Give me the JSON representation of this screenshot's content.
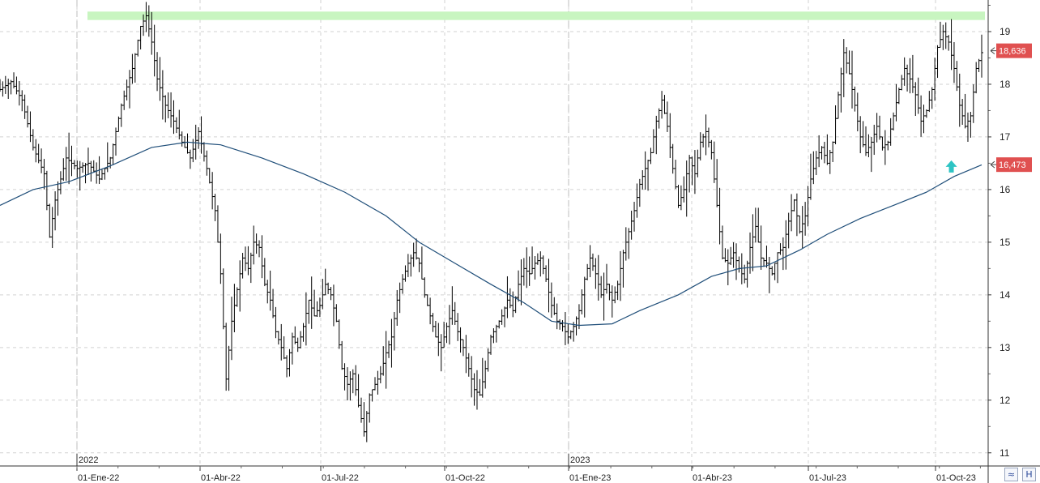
{
  "chart_data": {
    "type": "ohlc",
    "y_ticks": [
      "19",
      "18",
      "17",
      "16",
      "15",
      "14",
      "13",
      "12",
      "11"
    ],
    "ylim": [
      10.75,
      19.6
    ],
    "x_ticks": [
      "01-Ene-22",
      "01-Abr-22",
      "01-Jul-22",
      "01-Oct-22",
      "01-Ene-23",
      "01-Abr-23",
      "01-Jul-23",
      "01-Oct-23"
    ],
    "year_labels": [
      "2022",
      "2023"
    ],
    "price_tag": {
      "value": 18.636,
      "label": "18,636",
      "color": "#e05050"
    },
    "ma_tag": {
      "value": 16.473,
      "label": "16,473",
      "color": "#e05050"
    },
    "resistance_band": {
      "low": 19.22,
      "high": 19.38,
      "color": "#c8f5c0"
    },
    "price_path": [
      [
        0,
        17.9
      ],
      [
        4,
        18.05
      ],
      [
        8,
        17.7
      ],
      [
        12,
        16.8
      ],
      [
        16,
        16.3
      ],
      [
        18,
        15.1
      ],
      [
        20,
        15.8
      ],
      [
        24,
        16.6
      ],
      [
        28,
        16.4
      ],
      [
        32,
        16.5
      ],
      [
        36,
        16.2
      ],
      [
        40,
        16.6
      ],
      [
        44,
        17.6
      ],
      [
        48,
        18.3
      ],
      [
        51,
        19.1
      ],
      [
        53,
        19.3
      ],
      [
        55,
        18.8
      ],
      [
        57,
        18.1
      ],
      [
        60,
        17.6
      ],
      [
        63,
        17.3
      ],
      [
        66,
        16.9
      ],
      [
        69,
        16.6
      ],
      [
        72,
        17.1
      ],
      [
        75,
        16.4
      ],
      [
        78,
        15.6
      ],
      [
        80,
        14.4
      ],
      [
        82,
        12.4
      ],
      [
        84,
        13.5
      ],
      [
        86,
        14.1
      ],
      [
        88,
        14.7
      ],
      [
        90,
        14.5
      ],
      [
        92,
        15.0
      ],
      [
        94,
        14.9
      ],
      [
        96,
        14.2
      ],
      [
        98,
        13.9
      ],
      [
        100,
        13.3
      ],
      [
        102,
        13.0
      ],
      [
        104,
        12.6
      ],
      [
        106,
        13.2
      ],
      [
        108,
        13.0
      ],
      [
        110,
        13.4
      ],
      [
        112,
        13.9
      ],
      [
        114,
        13.6
      ],
      [
        116,
        13.8
      ],
      [
        118,
        14.2
      ],
      [
        120,
        14.0
      ],
      [
        122,
        13.5
      ],
      [
        124,
        12.6
      ],
      [
        126,
        12.3
      ],
      [
        128,
        12.5
      ],
      [
        130,
        11.9
      ],
      [
        132,
        11.4
      ],
      [
        134,
        12.1
      ],
      [
        136,
        12.3
      ],
      [
        138,
        12.5
      ],
      [
        140,
        12.9
      ],
      [
        142,
        13.2
      ],
      [
        144,
        13.9
      ],
      [
        146,
        14.3
      ],
      [
        148,
        14.6
      ],
      [
        150,
        14.8
      ],
      [
        152,
        14.6
      ],
      [
        154,
        14.0
      ],
      [
        156,
        13.6
      ],
      [
        158,
        13.2
      ],
      [
        160,
        13.0
      ],
      [
        162,
        13.4
      ],
      [
        164,
        13.7
      ],
      [
        166,
        13.3
      ],
      [
        168,
        13.0
      ],
      [
        170,
        12.6
      ],
      [
        172,
        12.2
      ],
      [
        174,
        12.1
      ],
      [
        176,
        12.6
      ],
      [
        178,
        13.2
      ],
      [
        180,
        13.4
      ],
      [
        182,
        13.6
      ],
      [
        184,
        13.9
      ],
      [
        186,
        13.7
      ],
      [
        188,
        14.2
      ],
      [
        190,
        14.5
      ],
      [
        192,
        14.4
      ],
      [
        194,
        14.6
      ],
      [
        196,
        14.7
      ],
      [
        198,
        14.3
      ],
      [
        200,
        13.8
      ],
      [
        202,
        13.5
      ],
      [
        204,
        13.4
      ],
      [
        206,
        13.2
      ],
      [
        208,
        13.4
      ],
      [
        210,
        13.7
      ],
      [
        212,
        14.3
      ],
      [
        214,
        14.7
      ],
      [
        216,
        14.4
      ],
      [
        218,
        14.0
      ],
      [
        220,
        14.2
      ],
      [
        222,
        13.9
      ],
      [
        224,
        14.2
      ],
      [
        226,
        14.8
      ],
      [
        228,
        15.2
      ],
      [
        230,
        15.6
      ],
      [
        232,
        16.1
      ],
      [
        234,
        16.4
      ],
      [
        236,
        16.7
      ],
      [
        238,
        17.3
      ],
      [
        240,
        17.7
      ],
      [
        242,
        17.2
      ],
      [
        244,
        16.4
      ],
      [
        246,
        15.7
      ],
      [
        248,
        16.0
      ],
      [
        250,
        16.6
      ],
      [
        252,
        16.3
      ],
      [
        254,
        16.9
      ],
      [
        256,
        17.1
      ],
      [
        258,
        16.7
      ],
      [
        260,
        15.7
      ],
      [
        262,
        14.7
      ],
      [
        264,
        14.6
      ],
      [
        266,
        14.8
      ],
      [
        268,
        14.5
      ],
      [
        270,
        14.3
      ],
      [
        272,
        14.9
      ],
      [
        274,
        15.3
      ],
      [
        276,
        14.7
      ],
      [
        278,
        14.6
      ],
      [
        280,
        14.4
      ],
      [
        282,
        14.8
      ],
      [
        284,
        14.9
      ],
      [
        286,
        15.4
      ],
      [
        288,
        15.8
      ],
      [
        290,
        15.2
      ],
      [
        292,
        15.5
      ],
      [
        294,
        16.2
      ],
      [
        296,
        16.6
      ],
      [
        298,
        16.8
      ],
      [
        300,
        16.5
      ],
      [
        302,
        16.9
      ],
      [
        304,
        17.8
      ],
      [
        306,
        18.6
      ],
      [
        308,
        18.2
      ],
      [
        310,
        17.6
      ],
      [
        312,
        17.0
      ],
      [
        314,
        16.7
      ],
      [
        316,
        16.9
      ],
      [
        318,
        17.2
      ],
      [
        320,
        16.8
      ],
      [
        322,
        16.9
      ],
      [
        324,
        17.4
      ],
      [
        326,
        17.9
      ],
      [
        328,
        18.3
      ],
      [
        330,
        18.1
      ],
      [
        332,
        17.8
      ],
      [
        334,
        17.3
      ],
      [
        336,
        17.5
      ],
      [
        338,
        17.9
      ],
      [
        340,
        18.7
      ],
      [
        342,
        19.0
      ],
      [
        344,
        18.8
      ],
      [
        346,
        18.3
      ],
      [
        348,
        17.6
      ],
      [
        350,
        17.2
      ],
      [
        352,
        17.4
      ],
      [
        354,
        18.3
      ],
      [
        356,
        18.6
      ]
    ],
    "moving_average": [
      [
        0,
        15.7
      ],
      [
        12,
        16.0
      ],
      [
        25,
        16.15
      ],
      [
        40,
        16.45
      ],
      [
        55,
        16.8
      ],
      [
        68,
        16.9
      ],
      [
        80,
        16.85
      ],
      [
        95,
        16.6
      ],
      [
        110,
        16.3
      ],
      [
        125,
        15.95
      ],
      [
        140,
        15.5
      ],
      [
        152,
        15.0
      ],
      [
        165,
        14.6
      ],
      [
        178,
        14.2
      ],
      [
        190,
        13.85
      ],
      [
        200,
        13.5
      ],
      [
        210,
        13.42
      ],
      [
        222,
        13.45
      ],
      [
        232,
        13.7
      ],
      [
        246,
        14.0
      ],
      [
        258,
        14.35
      ],
      [
        268,
        14.5
      ],
      [
        278,
        14.55
      ],
      [
        290,
        14.85
      ],
      [
        300,
        15.15
      ],
      [
        312,
        15.45
      ],
      [
        324,
        15.7
      ],
      [
        336,
        15.95
      ],
      [
        346,
        16.25
      ],
      [
        356,
        16.47
      ]
    ],
    "indicator_arrow": {
      "x": 345,
      "y": 16.6,
      "color": "#2ec4c4"
    },
    "grid": true
  },
  "controls": {
    "zoom_icon_glyph": "≈",
    "save_icon_glyph": "H"
  }
}
